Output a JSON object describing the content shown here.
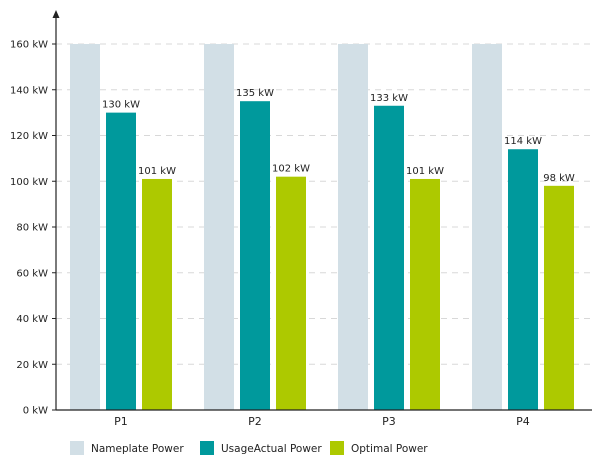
{
  "chart_data": {
    "type": "bar",
    "title": "",
    "xlabel": "",
    "ylabel": "",
    "categories": [
      "P1",
      "P2",
      "P3",
      "P4"
    ],
    "ylim": [
      0,
      160
    ],
    "yticks": [
      0,
      20,
      40,
      60,
      80,
      100,
      120,
      140,
      160
    ],
    "ytick_labels": [
      "0 kW",
      "20 kW",
      "40 kW",
      "60 kW",
      "80 kW",
      "100 kW",
      "120 kW",
      "140 kW",
      "160 kW"
    ],
    "grid": true,
    "legend_position": "bottom",
    "series": [
      {
        "name": "Nameplate Power",
        "color": "#d2dfe6",
        "values": [
          160,
          160,
          160,
          160
        ],
        "labels": [
          "",
          "",
          "",
          ""
        ]
      },
      {
        "name": "UsageActual Power",
        "color": "#00999c",
        "values": [
          130,
          135,
          133,
          114
        ],
        "labels": [
          "130 kW",
          "135 kW",
          "133 kW",
          "114 kW"
        ]
      },
      {
        "name": "Optimal Power",
        "color": "#adc900",
        "values": [
          101,
          102,
          101,
          98
        ],
        "labels": [
          "101 kW",
          "102 kW",
          "101 kW",
          "98 kW"
        ]
      }
    ]
  }
}
